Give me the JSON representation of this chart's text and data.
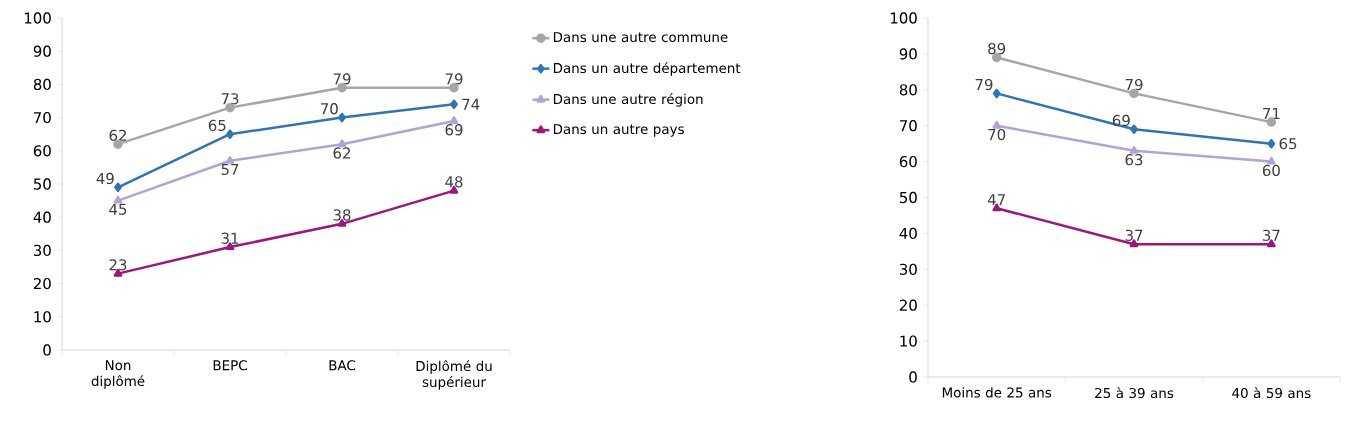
{
  "chart_data": [
    {
      "type": "line",
      "categories": [
        "Non diplômé",
        "BEPC",
        "BAC",
        "Diplômé du supérieur"
      ],
      "series": [
        {
          "name": "Dans une autre commune",
          "color": "#a6a6a6",
          "marker": "circle",
          "values": [
            62,
            73,
            79,
            79
          ]
        },
        {
          "name": "Dans un autre département",
          "color": "#2e75b6",
          "marker": "diamond",
          "values": [
            49,
            65,
            70,
            74
          ]
        },
        {
          "name": "Dans une autre région",
          "color": "#b3a2d6",
          "marker": "triangle",
          "values": [
            45,
            57,
            62,
            69
          ]
        },
        {
          "name": "Dans un autre pays",
          "color": "#a0147e",
          "marker": "triangle",
          "values": [
            23,
            31,
            38,
            48
          ]
        }
      ],
      "ylim": [
        0,
        100
      ],
      "yticks": [
        0,
        10,
        20,
        30,
        40,
        50,
        60,
        70,
        80,
        90,
        100
      ],
      "data_labels": true,
      "legend": "right",
      "grid": false
    },
    {
      "type": "line",
      "categories": [
        "Moins de 25 ans",
        "25 à 39 ans",
        "40 à 59 ans"
      ],
      "series": [
        {
          "color": "#a6a6a6",
          "marker": "circle",
          "values": [
            89,
            79,
            71
          ]
        },
        {
          "color": "#2e75b6",
          "marker": "diamond",
          "values": [
            79,
            69,
            65
          ]
        },
        {
          "color": "#b3a2d6",
          "marker": "triangle",
          "values": [
            70,
            63,
            60
          ]
        },
        {
          "color": "#a0147e",
          "marker": "triangle",
          "values": [
            47,
            37,
            37
          ]
        }
      ],
      "ylim": [
        0,
        100
      ],
      "yticks": [
        0,
        10,
        20,
        30,
        40,
        50,
        60,
        70,
        80,
        90,
        100
      ],
      "data_labels": true,
      "grid": false
    }
  ]
}
